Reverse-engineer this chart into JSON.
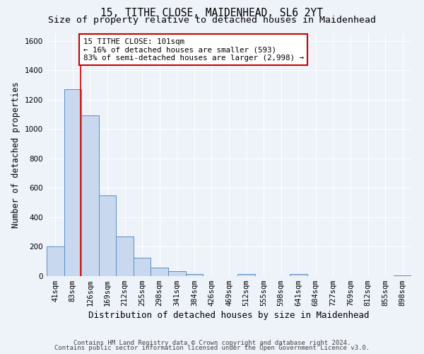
{
  "title": "15, TITHE CLOSE, MAIDENHEAD, SL6 2YT",
  "subtitle": "Size of property relative to detached houses in Maidenhead",
  "xlabel": "Distribution of detached houses by size in Maidenhead",
  "ylabel": "Number of detached properties",
  "bin_labels": [
    "41sqm",
    "83sqm",
    "126sqm",
    "169sqm",
    "212sqm",
    "255sqm",
    "298sqm",
    "341sqm",
    "384sqm",
    "426sqm",
    "469sqm",
    "512sqm",
    "555sqm",
    "598sqm",
    "641sqm",
    "684sqm",
    "727sqm",
    "769sqm",
    "812sqm",
    "855sqm",
    "898sqm"
  ],
  "bar_values": [
    200,
    1270,
    1095,
    550,
    270,
    125,
    60,
    32,
    15,
    0,
    0,
    15,
    0,
    0,
    15,
    0,
    0,
    0,
    0,
    0,
    5
  ],
  "bar_color": "#c8d9ef",
  "bar_edge_color": "#5b8ec4",
  "ylim": [
    0,
    1650
  ],
  "yticks": [
    0,
    200,
    400,
    600,
    800,
    1000,
    1200,
    1400,
    1600
  ],
  "red_line_x": 1.45,
  "annotation_title": "15 TITHE CLOSE: 101sqm",
  "annotation_line1": "← 16% of detached houses are smaller (593)",
  "annotation_line2": "83% of semi-detached houses are larger (2,998) →",
  "annotation_box_color": "#cc0000",
  "footer_line1": "Contains HM Land Registry data © Crown copyright and database right 2024.",
  "footer_line2": "Contains public sector information licensed under the Open Government Licence v3.0.",
  "background_color": "#eef2f9",
  "grid_color": "#d8e0ed",
  "title_fontsize": 10.5,
  "subtitle_fontsize": 9.5,
  "xlabel_fontsize": 9,
  "ylabel_fontsize": 8.5,
  "tick_fontsize": 7.5,
  "footer_fontsize": 6.5
}
